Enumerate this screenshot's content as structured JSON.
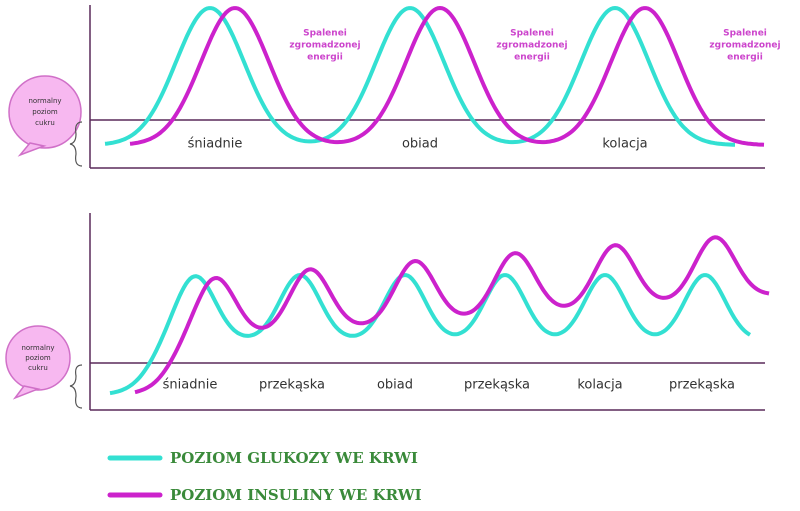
{
  "top_panel": {
    "bubble": [
      "normalny",
      "poziom",
      "cukru"
    ],
    "annotations": [
      [
        "Spalenei",
        "zgromadzonej",
        "energii"
      ],
      [
        "Spalenei",
        "zgromadzonej",
        "energii"
      ],
      [
        "Spalenei",
        "zgromadzonej",
        "energii"
      ]
    ],
    "meals": [
      "śniadnie",
      "obiad",
      "kolacja"
    ]
  },
  "bottom_panel": {
    "bubble": [
      "normalny",
      "poziom",
      "cukru"
    ],
    "meals": [
      "śniadnie",
      "przekąska",
      "obiad",
      "przekąska",
      "kolacja",
      "przekąska"
    ]
  },
  "legend": [
    {
      "label": "POZIOM GLUKOZY WE KRWI",
      "color": "#33e0d2"
    },
    {
      "label": "POZIOM INSULINY WE KRWI",
      "color": "#cc22cc"
    }
  ]
}
